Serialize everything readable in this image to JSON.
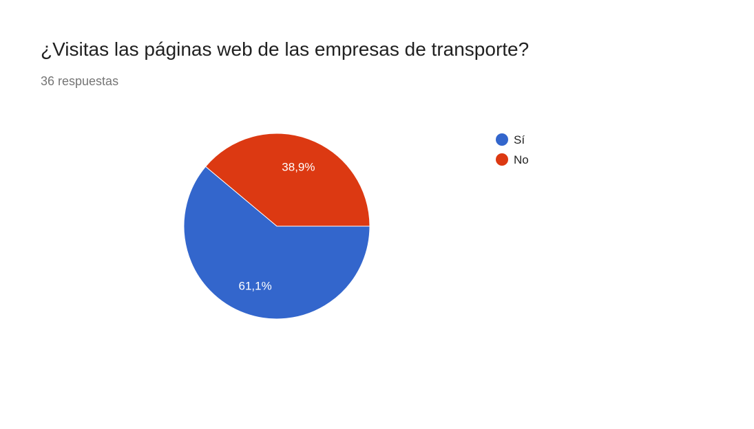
{
  "question": {
    "title": "¿Visitas las páginas web de las empresas de transporte?",
    "responses": "36 respuestas"
  },
  "chart_data": {
    "type": "pie",
    "categories": [
      "Sí",
      "No"
    ],
    "values": [
      61.1,
      38.9
    ],
    "value_labels": [
      "61,1%",
      "38,9%"
    ],
    "colors": [
      "#3366cc",
      "#dc3912"
    ],
    "start": "No slice starts at 3 o'clock going counter-clockwise; Sí fills the rest",
    "legend_position": "right"
  }
}
